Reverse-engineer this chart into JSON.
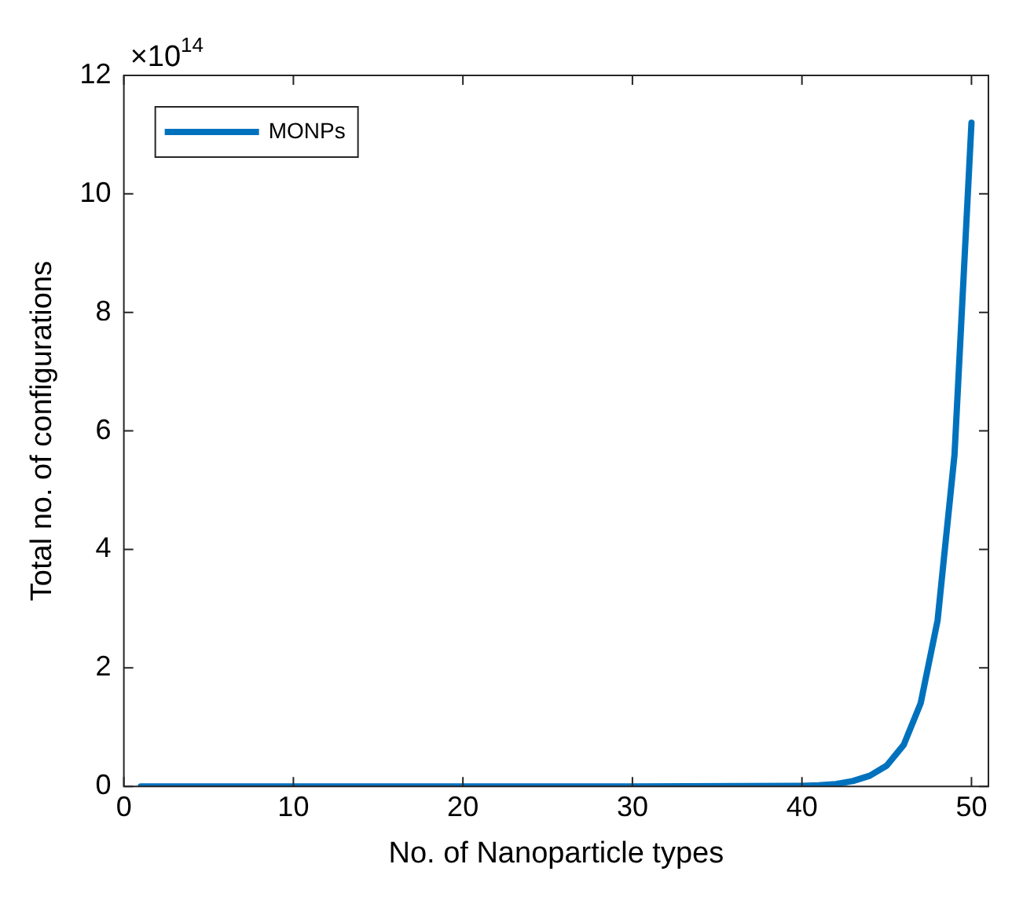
{
  "chart_data": {
    "type": "line",
    "xlabel": "No. of Nanoparticle types",
    "ylabel": "Total no. of configurations",
    "annotations": [
      "×10$^{14}$"
    ],
    "x": [
      1,
      10,
      20,
      30,
      40,
      41,
      42,
      43,
      44,
      45,
      46,
      47,
      48,
      49,
      50
    ],
    "series": [
      {
        "name": "MONPs",
        "color": "#0072bd",
        "values": [
          0,
          0,
          0,
          0,
          0.01,
          0.02,
          0.04,
          0.09,
          0.18,
          0.35,
          0.7,
          1.4,
          2.8,
          5.6,
          11.2
        ]
      }
    ],
    "xlim": [
      0,
      51
    ],
    "xticks": [
      0,
      10,
      20,
      30,
      40,
      50
    ],
    "ylim": [
      0,
      12
    ],
    "yticks": [
      0,
      2,
      4,
      6,
      8,
      10,
      12
    ],
    "grid": false,
    "legend": "top left",
    "marker": "none",
    "line_style": "solid"
  }
}
